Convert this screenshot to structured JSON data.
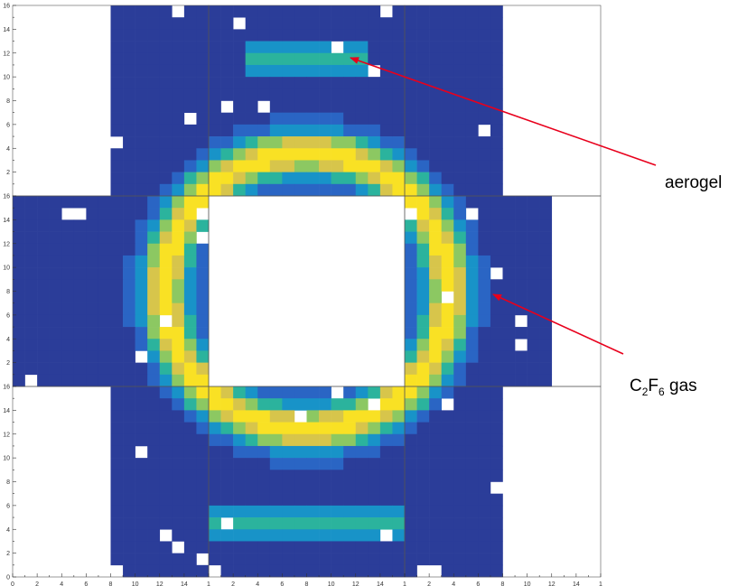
{
  "chart_data": {
    "type": "heatmap",
    "title": "",
    "xlabel": "",
    "ylabel": "",
    "grid": false,
    "layout": "3x3 grid of 16x16 pixel-photodetector hit maps, centre pad empty",
    "tick_labels": [
      "0",
      "2",
      "4",
      "6",
      "8",
      "10",
      "12",
      "14",
      "16"
    ],
    "edge_tick_label": "1",
    "xlim": [
      0,
      16
    ],
    "ylim": [
      0,
      16
    ],
    "colormap": [
      "#2b3d99",
      "#2a65c4",
      "#1893c8",
      "#2bb39d",
      "#8cc862",
      "#d7c54b",
      "#f9e124"
    ],
    "empty_color": "#ffffff",
    "annotation_color": "#e8001c",
    "annotations": [
      {
        "label": "aerogel",
        "label_main": "aerogel",
        "sub1": "",
        "mid": "",
        "sub2": "",
        "tail": ""
      },
      {
        "label": "C2F6 gas",
        "label_main": "C",
        "sub1": "2",
        "mid": "F",
        "sub2": "6",
        "tail": " gas"
      }
    ],
    "pads": [
      {
        "row": 0,
        "col": 0,
        "mode": "partial-left",
        "col_start": 8
      },
      {
        "row": 0,
        "col": 1,
        "mode": "full"
      },
      {
        "row": 0,
        "col": 2,
        "mode": "partial-right",
        "col_end": 8
      },
      {
        "row": 1,
        "col": 0,
        "mode": "full"
      },
      {
        "row": 1,
        "col": 1,
        "mode": "empty"
      },
      {
        "row": 1,
        "col": 2,
        "mode": "partial-right",
        "col_end": 12
      },
      {
        "row": 2,
        "col": 0,
        "mode": "partial-left",
        "col_start": 8
      },
      {
        "row": 2,
        "col": 1,
        "mode": "full"
      },
      {
        "row": 2,
        "col": 2,
        "mode": "partial-right",
        "col_end": 8
      }
    ],
    "gas_ring": {
      "center": [
        24,
        24
      ],
      "radius": 11.6,
      "width": 1.4,
      "peak": 6
    },
    "aerogel_arcs": [
      {
        "pad": [
          0,
          1
        ],
        "row_from_top": 4,
        "col_from": 3,
        "col_to": 12,
        "level": 3
      },
      {
        "pad": [
          2,
          1
        ],
        "row_from_top": 11,
        "col_from": 0,
        "col_to": 15,
        "level": 3
      }
    ]
  }
}
